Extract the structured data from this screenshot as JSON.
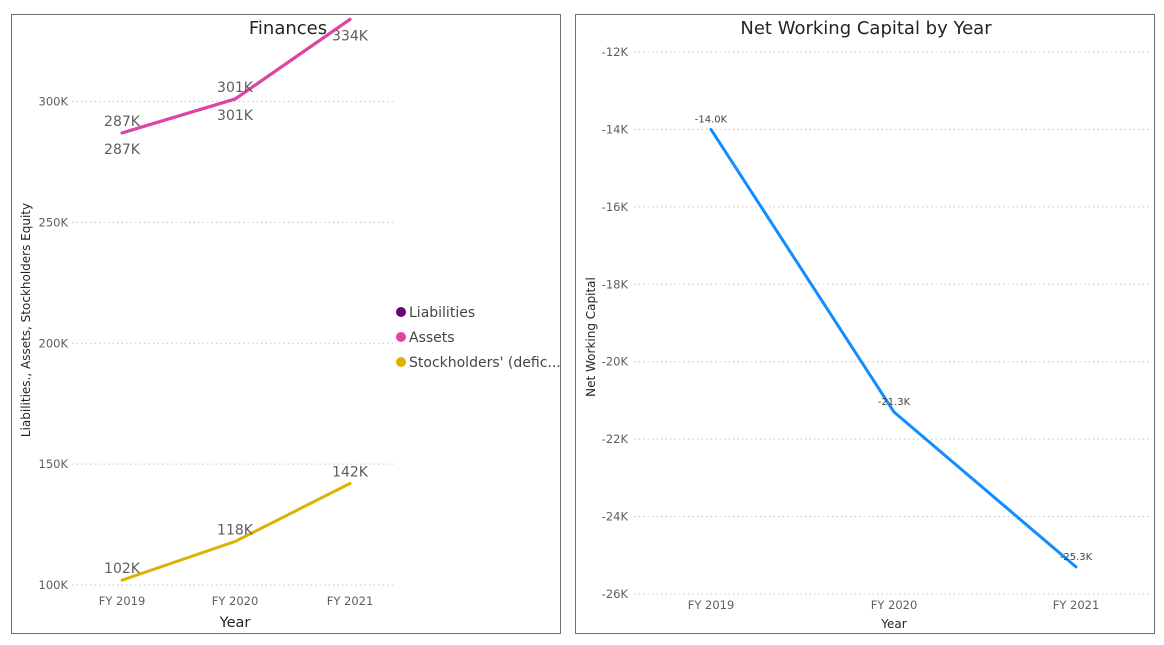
{
  "chart_data": [
    {
      "type": "line",
      "title": "Finances",
      "xlabel": "Year",
      "ylabel": "Liabilities., Assets, Stockholders Equity",
      "categories": [
        "FY 2019",
        "FY 2020",
        "FY 2021"
      ],
      "ylim": [
        100000,
        330000
      ],
      "yticks": [
        {
          "value": 100000,
          "label": "100K"
        },
        {
          "value": 150000,
          "label": "150K"
        },
        {
          "value": 200000,
          "label": "200K"
        },
        {
          "value": 250000,
          "label": "250K"
        },
        {
          "value": 300000,
          "label": "300K"
        }
      ],
      "grid": true,
      "legend_position": "right",
      "series": [
        {
          "name": "Liabilities",
          "color": "#6b007b",
          "values": [
            287000,
            301000,
            334000
          ],
          "labels": [
            "287K",
            "301K",
            "334K"
          ],
          "label_position": "below"
        },
        {
          "name": "Assets",
          "color": "#e044a7",
          "values": [
            287000,
            301000,
            334000
          ],
          "labels": [
            "287K",
            "301K",
            "334K"
          ],
          "label_position": "above"
        },
        {
          "name": "Stockholders' (defic...",
          "color": "#d9b300",
          "values": [
            102000,
            118000,
            142000
          ],
          "labels": [
            "102K",
            "118K",
            "142K"
          ],
          "label_position": "above"
        }
      ]
    },
    {
      "type": "line",
      "title": "Net Working Capital by Year",
      "xlabel": "Year",
      "ylabel": "Net Working Capital",
      "categories": [
        "FY 2019",
        "FY 2020",
        "FY 2021"
      ],
      "ylim": [
        -26000,
        -12000
      ],
      "yticks": [
        {
          "value": -12000,
          "label": "-12K"
        },
        {
          "value": -14000,
          "label": "-14K"
        },
        {
          "value": -16000,
          "label": "-16K"
        },
        {
          "value": -18000,
          "label": "-18K"
        },
        {
          "value": -20000,
          "label": "-20K"
        },
        {
          "value": -22000,
          "label": "-22K"
        },
        {
          "value": -24000,
          "label": "-24K"
        },
        {
          "value": -26000,
          "label": "-26K"
        }
      ],
      "grid": true,
      "series": [
        {
          "color": "#118dff",
          "values": [
            -14000,
            -21300,
            -25300
          ],
          "labels": [
            "-14.0K",
            "-21.3K",
            "-25.3K"
          ]
        }
      ]
    }
  ]
}
